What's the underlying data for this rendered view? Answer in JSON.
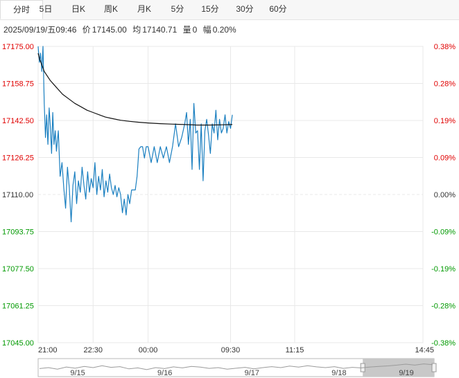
{
  "tabs": [
    {
      "label": "分时",
      "active": true
    },
    {
      "label": "5日",
      "active": false
    },
    {
      "label": "日K",
      "active": false
    },
    {
      "label": "周K",
      "active": false
    },
    {
      "label": "月K",
      "active": false
    },
    {
      "label": "5分",
      "active": false
    },
    {
      "label": "15分",
      "active": false
    },
    {
      "label": "30分",
      "active": false
    },
    {
      "label": "60分",
      "active": false
    }
  ],
  "info": {
    "datetime": "2025/09/19/五09:46",
    "price_label": "价",
    "price": "17145.00",
    "avg_label": "均",
    "avg": "17140.71",
    "volume_label": "量",
    "volume": "0",
    "change_label": "幅",
    "change": "0.20%"
  },
  "colors": {
    "up": "#e00000",
    "down": "#009900",
    "flat": "#333333",
    "price_line": "#1a7fc0",
    "avg_line": "#111111",
    "grid": "#e8e8e8"
  },
  "chart_data": {
    "type": "line",
    "title": "",
    "base_price": 17110.0,
    "ylim": [
      17045.0,
      17175.0
    ],
    "y_ticks_left": [
      "17175.00",
      "17158.75",
      "17142.50",
      "17126.25",
      "17110.00",
      "17093.75",
      "17077.50",
      "17061.25",
      "17045.00"
    ],
    "y_ticks_right": [
      "0.38%",
      "0.28%",
      "0.19%",
      "0.09%",
      "0.00%",
      "-0.09%",
      "-0.19%",
      "-0.28%",
      "-0.38%"
    ],
    "x_tick_labels": [
      "21:00",
      "22:30",
      "00:00",
      "09:30",
      "11:15",
      "14:45"
    ],
    "x_tick_positions": [
      0,
      90,
      180,
      315,
      420,
      630
    ],
    "x_total_minutes": 630,
    "grid": true,
    "series": [
      {
        "key": "price",
        "x": [
          0,
          2,
          4,
          6,
          8,
          10,
          12,
          14,
          16,
          18,
          20,
          22,
          24,
          26,
          28,
          30,
          33,
          36,
          39,
          42,
          45,
          48,
          51,
          54,
          57,
          60,
          63,
          66,
          69,
          72,
          75,
          78,
          81,
          84,
          87,
          90,
          93,
          96,
          99,
          102,
          105,
          108,
          111,
          114,
          117,
          120,
          123,
          126,
          129,
          132,
          135,
          138,
          141,
          144,
          147,
          150,
          153,
          156,
          159,
          162,
          165,
          168,
          171,
          174,
          177,
          180,
          185,
          190,
          195,
          200,
          205,
          210,
          215,
          220,
          225,
          230,
          235,
          240,
          243,
          246,
          249,
          252,
          255,
          258,
          261,
          264,
          267,
          270,
          273,
          276,
          279,
          282,
          285,
          288,
          291,
          294,
          297,
          300,
          303,
          306,
          309,
          312,
          315,
          318
        ],
        "values": [
          17175,
          17168,
          17172,
          17164,
          17175,
          17150,
          17135,
          17145,
          17132,
          17148,
          17140,
          17128,
          17146,
          17132,
          17138,
          17129,
          17138,
          17118,
          17124,
          17113,
          17104,
          17122,
          17113,
          17098,
          17114,
          17120,
          17106,
          17116,
          17111,
          17122,
          17114,
          17108,
          17120,
          17111,
          17117,
          17113,
          17124,
          17110,
          17118,
          17112,
          17121,
          17109,
          17116,
          17111,
          17119,
          17113,
          17110,
          17114,
          17109,
          17113,
          17110,
          17102,
          17108,
          17101,
          17110,
          17106,
          17112,
          17112,
          17112,
          17118,
          17130,
          17131,
          17131,
          17126,
          17131,
          17131,
          17124,
          17131,
          17124,
          17131,
          17126,
          17131,
          17124,
          17131,
          17141,
          17131,
          17135,
          17141,
          17146,
          17132,
          17143,
          17121,
          17150,
          17137,
          17138,
          17121,
          17141,
          17116,
          17138,
          17143,
          17136,
          17128,
          17141,
          17137,
          17147,
          17134,
          17143,
          17137,
          17139,
          17145,
          17137,
          17142,
          17139,
          17145
        ]
      },
      {
        "key": "avg",
        "x": [
          0,
          3,
          6,
          10,
          15,
          20,
          25,
          30,
          40,
          50,
          60,
          70,
          80,
          90,
          100,
          110,
          120,
          135,
          150,
          165,
          180,
          200,
          220,
          240,
          260,
          280,
          300,
          318
        ],
        "values": [
          17172,
          17169,
          17167,
          17164,
          17162,
          17160,
          17158.5,
          17157,
          17154,
          17152,
          17150,
          17148.5,
          17147,
          17146,
          17145,
          17144,
          17143.4,
          17142.6,
          17142.1,
          17141.7,
          17141.4,
          17141.1,
          17140.9,
          17140.7,
          17140.5,
          17140.5,
          17140.6,
          17140.7
        ]
      }
    ]
  },
  "navigator": {
    "labels": [
      "9/15",
      "9/16",
      "9/17",
      "9/18",
      "9/19"
    ],
    "label_positions": [
      0.1,
      0.32,
      0.54,
      0.76,
      0.93
    ],
    "selected": [
      0.82,
      1.0
    ],
    "trend": [
      0.58,
      0.5,
      0.62,
      0.45,
      0.55,
      0.4,
      0.5,
      0.35,
      0.48,
      0.42,
      0.6,
      0.52,
      0.66,
      0.5,
      0.58,
      0.44,
      0.52,
      0.4,
      0.46,
      0.56,
      0.5,
      0.62,
      0.55,
      0.48,
      0.6,
      0.5,
      0.42,
      0.5,
      0.38,
      0.46,
      0.35,
      0.44,
      0.5,
      0.42,
      0.56,
      0.48,
      0.52,
      0.45,
      0.4,
      0.36,
      0.3,
      0.22,
      0.3,
      0.2,
      0.26
    ]
  }
}
